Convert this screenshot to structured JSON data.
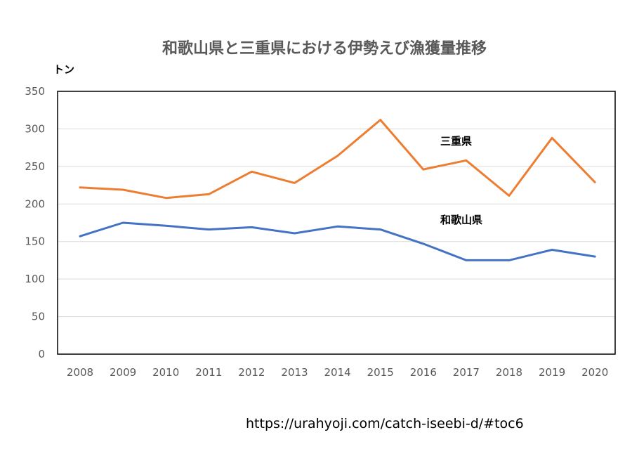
{
  "chart_data": {
    "type": "line",
    "title": "和歌山県と三重県における伊勢えび漁獲量推移",
    "unit_label": "トン",
    "x": [
      "2008",
      "2009",
      "2010",
      "2011",
      "2012",
      "2013",
      "2014",
      "2015",
      "2016",
      "2017",
      "2018",
      "2019",
      "2020"
    ],
    "yticks": [
      "0",
      "50",
      "100",
      "150",
      "200",
      "250",
      "300",
      "350"
    ],
    "ylim": [
      0,
      350
    ],
    "grid": true,
    "series": [
      {
        "name": "三重県",
        "color": "#ED7D31",
        "values": [
          222,
          219,
          208,
          213,
          243,
          228,
          264,
          312,
          246,
          258,
          211,
          288,
          229
        ]
      },
      {
        "name": "和歌山県",
        "color": "#4472C4",
        "values": [
          157,
          175,
          171,
          166,
          169,
          161,
          170,
          166,
          147,
          125,
          125,
          139,
          130
        ]
      }
    ]
  },
  "source_url": "https://urahyoji.com/catch-iseebi-d/#toc6"
}
